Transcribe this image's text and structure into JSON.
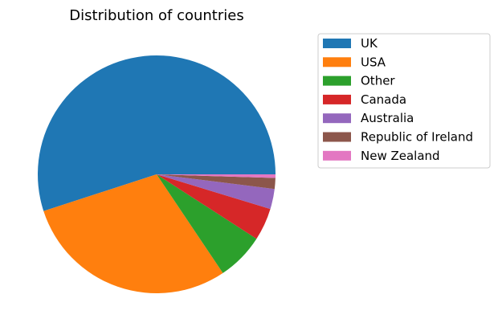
{
  "chart_data": {
    "type": "pie",
    "title": "Distribution of countries",
    "categories": [
      "UK",
      "USA",
      "Other",
      "Canada",
      "Australia",
      "Republic of Ireland",
      "New Zealand"
    ],
    "values": [
      56.1,
      30.0,
      6.6,
      4.5,
      2.8,
      1.5,
      0.5
    ],
    "value_unit": "percent",
    "colors": [
      "#1f77b4",
      "#ff7f0e",
      "#2ca02c",
      "#d62728",
      "#9467bd",
      "#8c564b",
      "#e377c2"
    ],
    "start_angle_deg": 0,
    "direction": "counterclockwise",
    "legend_position": "upper-right-outside"
  }
}
